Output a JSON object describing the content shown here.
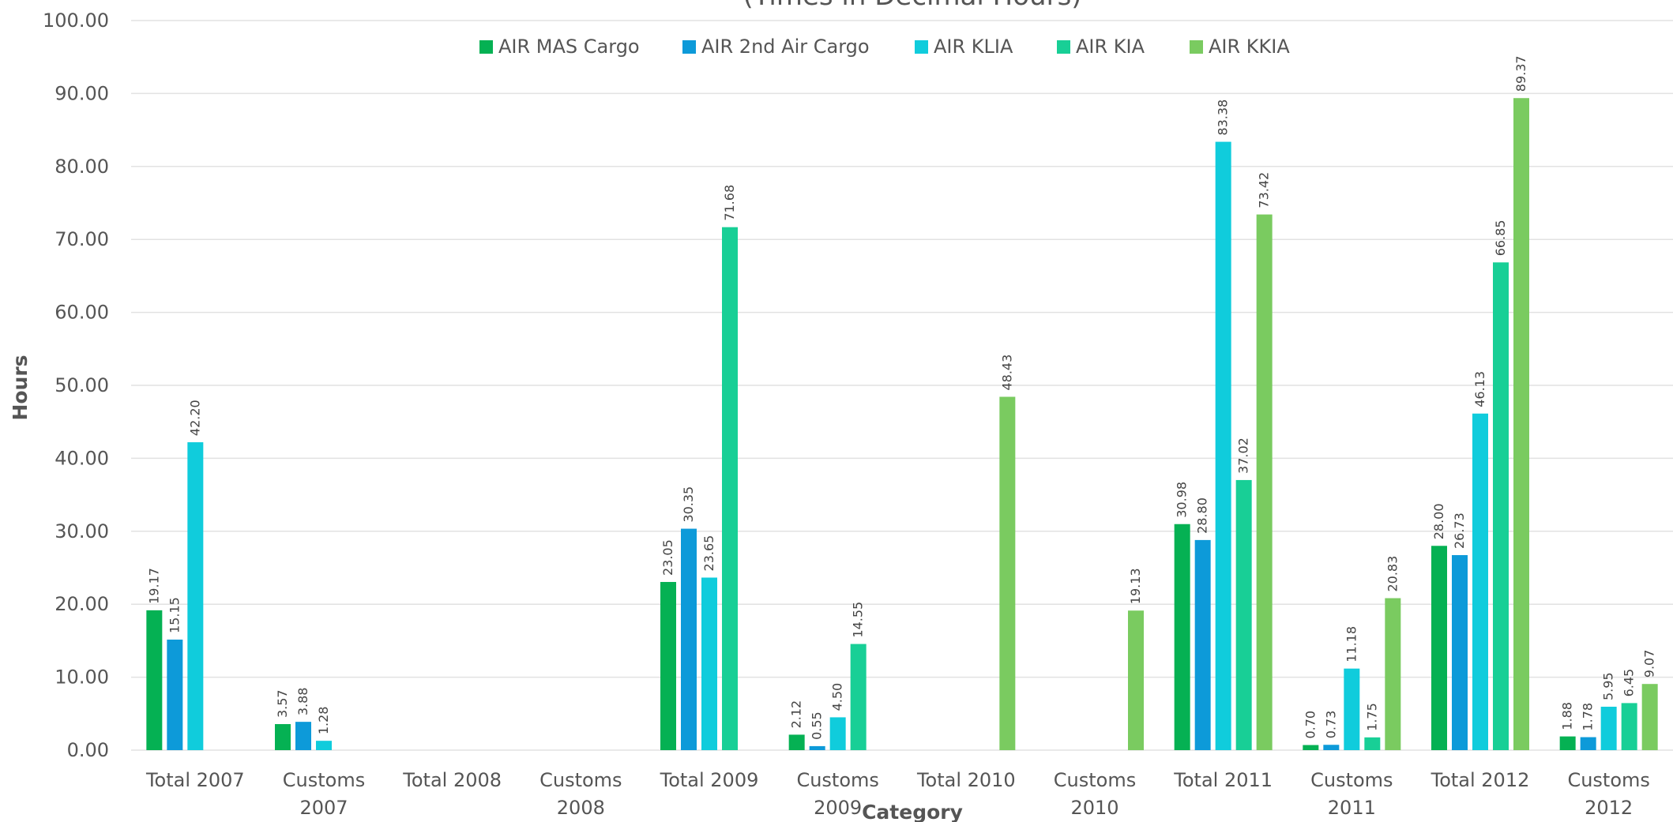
{
  "chart_data": {
    "type": "bar",
    "title": "(Times in Decimal Hours)",
    "xlabel": "Category",
    "ylabel": "Hours",
    "ylim": [
      0,
      100
    ],
    "yticks": [
      "0.00",
      "10.00",
      "20.00",
      "30.00",
      "40.00",
      "50.00",
      "60.00",
      "70.00",
      "80.00",
      "90.00",
      "100.00"
    ],
    "grid": true,
    "legend_position": "top-center",
    "categories": [
      [
        "Total 2007"
      ],
      [
        "Customs",
        "2007"
      ],
      [
        "Total 2008"
      ],
      [
        "Customs",
        "2008"
      ],
      [
        "Total 2009"
      ],
      [
        "Customs",
        "2009"
      ],
      [
        "Total 2010"
      ],
      [
        "Customs",
        "2010"
      ],
      [
        "Total 2011"
      ],
      [
        "Customs",
        "2011"
      ],
      [
        "Total 2012"
      ],
      [
        "Customs",
        "2012"
      ]
    ],
    "series": [
      {
        "name": "AIR MAS Cargo",
        "color": "#05b153",
        "values": [
          19.17,
          3.57,
          null,
          null,
          23.05,
          2.12,
          null,
          null,
          30.98,
          0.7,
          28.0,
          1.88
        ],
        "labels": [
          "19.17",
          "3.57",
          "",
          "",
          "23.05",
          "2.12",
          "",
          "",
          "30.98",
          "0.70",
          "28.00",
          "1.88"
        ]
      },
      {
        "name": "AIR 2nd Air Cargo",
        "color": "#0d9ad9",
        "values": [
          15.15,
          3.88,
          null,
          null,
          30.35,
          0.55,
          null,
          null,
          28.8,
          0.73,
          26.73,
          1.78
        ],
        "labels": [
          "15.15",
          "3.88",
          "",
          "",
          "30.35",
          "0.55",
          "",
          "",
          "28.80",
          "0.73",
          "26.73",
          "1.78"
        ]
      },
      {
        "name": "AIR KLIA",
        "color": "#10ccdc",
        "values": [
          42.2,
          1.28,
          null,
          null,
          23.65,
          4.5,
          null,
          null,
          83.38,
          11.18,
          46.13,
          5.95
        ],
        "labels": [
          "42.20",
          "1.28",
          "",
          "",
          "23.65",
          "4.50",
          "",
          "",
          "83.38",
          "11.18",
          "46.13",
          "5.95"
        ]
      },
      {
        "name": "AIR KIA",
        "color": "#18cf96",
        "values": [
          null,
          null,
          null,
          null,
          71.68,
          14.55,
          null,
          null,
          37.02,
          1.75,
          66.85,
          6.45
        ],
        "labels": [
          "",
          "",
          "",
          "",
          "71.68",
          "14.55",
          "",
          "",
          "37.02",
          "1.75",
          "66.85",
          "6.45"
        ]
      },
      {
        "name": "AIR KKIA",
        "color": "#7acb60",
        "values": [
          null,
          null,
          null,
          null,
          null,
          null,
          48.43,
          19.13,
          73.42,
          20.83,
          89.37,
          9.07
        ],
        "labels": [
          "",
          "",
          "",
          "",
          "",
          "",
          "48.43",
          "19.13",
          "73.42",
          "20.83",
          "89.37",
          "9.07"
        ]
      }
    ]
  }
}
